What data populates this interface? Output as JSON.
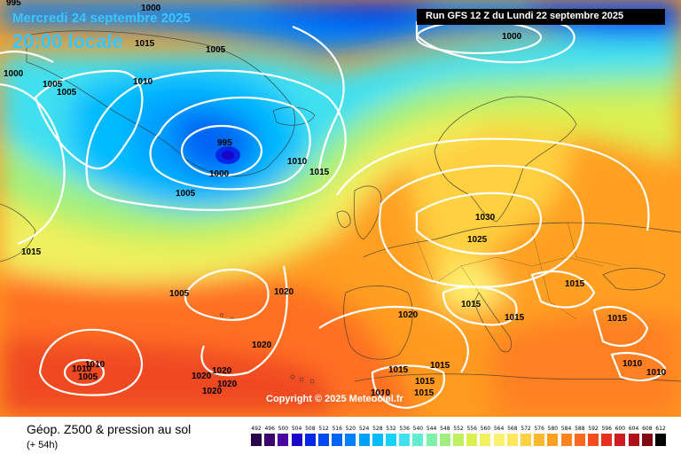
{
  "header": {
    "date_text": "Mercredi 24 septembre 2025",
    "time_text": "20:00 locale",
    "run_text": "Run GFS 12 Z du Lundi 22 septembre 2025"
  },
  "copyright": "Copyright © 2025 Meteociel.fr",
  "legend": {
    "title": "Géop. Z500 & pression au sol",
    "subtitle": "(+ 54h)",
    "scale_values": [
      "492",
      "496",
      "500",
      "504",
      "508",
      "512",
      "516",
      "520",
      "524",
      "528",
      "532",
      "536",
      "540",
      "544",
      "548",
      "552",
      "556",
      "560",
      "564",
      "568",
      "572",
      "576",
      "580",
      "584",
      "588",
      "592",
      "596",
      "600",
      "604",
      "608",
      "612"
    ],
    "scale_colors": [
      "#2a0048",
      "#3c0070",
      "#4a00a0",
      "#1a00c8",
      "#0028e6",
      "#0048f0",
      "#0064f5",
      "#0080fa",
      "#00a0ff",
      "#00bcff",
      "#16d2ff",
      "#40e0f0",
      "#60ecd0",
      "#80f0a8",
      "#a0f080",
      "#c0f060",
      "#dcf050",
      "#f0f060",
      "#fff070",
      "#ffe860",
      "#ffd040",
      "#ffb830",
      "#ffa020",
      "#ff8420",
      "#ff6820",
      "#f84c20",
      "#e83020",
      "#d01c20",
      "#b01018",
      "#800810",
      "#000000"
    ]
  },
  "isobars": [
    {
      "value": "995",
      "role": "nw-corner"
    },
    {
      "value": "1000",
      "role": "label"
    },
    {
      "value": "1015",
      "role": "label"
    },
    {
      "value": "1000",
      "role": "label"
    },
    {
      "value": "1005",
      "role": "label"
    },
    {
      "value": "1005",
      "role": "label"
    },
    {
      "value": "1005",
      "role": "label"
    },
    {
      "value": "1010",
      "role": "label"
    },
    {
      "value": "995",
      "role": "low-center"
    },
    {
      "value": "1000",
      "role": "label"
    },
    {
      "value": "1005",
      "role": "label"
    },
    {
      "value": "1010",
      "role": "label"
    },
    {
      "value": "1015",
      "role": "label"
    },
    {
      "value": "1000",
      "role": "label"
    },
    {
      "value": "1030",
      "role": "high-center"
    },
    {
      "value": "1025",
      "role": "label"
    },
    {
      "value": "1015",
      "role": "label"
    },
    {
      "value": "1015",
      "role": "label"
    },
    {
      "value": "1015",
      "role": "label"
    },
    {
      "value": "1015",
      "role": "label"
    },
    {
      "value": "1015",
      "role": "label"
    },
    {
      "value": "1020",
      "role": "label"
    },
    {
      "value": "1020",
      "role": "label"
    },
    {
      "value": "1020",
      "role": "label"
    },
    {
      "value": "1005",
      "role": "label"
    },
    {
      "value": "1020",
      "role": "label"
    },
    {
      "value": "1020",
      "role": "label"
    },
    {
      "value": "1020",
      "role": "label"
    },
    {
      "value": "1020",
      "role": "label"
    },
    {
      "value": "1010",
      "role": "label"
    },
    {
      "value": "1010",
      "role": "label"
    },
    {
      "value": "1015",
      "role": "label"
    },
    {
      "value": "1015",
      "role": "label"
    },
    {
      "value": "1015",
      "role": "label"
    },
    {
      "value": "1010",
      "role": "label"
    },
    {
      "value": "1010",
      "role": "label"
    },
    {
      "value": "1010",
      "role": "label"
    },
    {
      "value": "1005",
      "role": "label"
    },
    {
      "value": "1015",
      "role": "label"
    }
  ]
}
